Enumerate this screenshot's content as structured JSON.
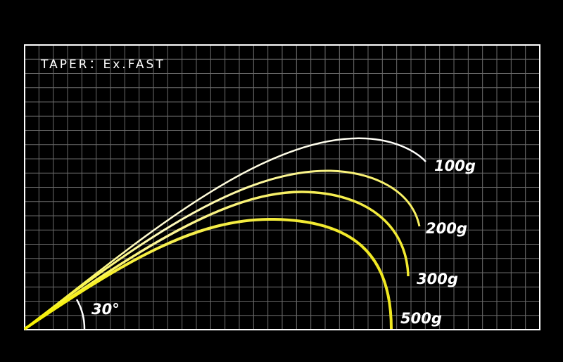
{
  "header": {
    "title": "TAPER：Ex.FAST"
  },
  "angle": {
    "label": "30°"
  },
  "curves": [
    {
      "label": "100g"
    },
    {
      "label": "200g"
    },
    {
      "label": "300g"
    },
    {
      "label": "500g"
    }
  ]
}
